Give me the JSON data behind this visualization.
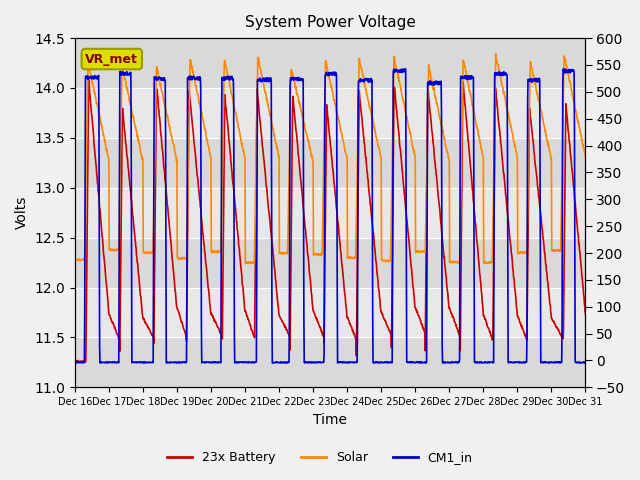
{
  "title": "System Power Voltage",
  "xlabel": "Time",
  "ylabel": "Volts",
  "ylim_left": [
    11.0,
    14.5
  ],
  "ylim_right": [
    -50,
    600
  ],
  "yticks_left": [
    11.0,
    11.5,
    12.0,
    12.5,
    13.0,
    13.5,
    14.0,
    14.5
  ],
  "yticks_right": [
    -50,
    0,
    50,
    100,
    150,
    200,
    250,
    300,
    350,
    400,
    450,
    500,
    550,
    600
  ],
  "xtick_labels": [
    "Dec 16",
    "Dec 17",
    "Dec 18",
    "Dec 19",
    "Dec 20",
    "Dec 21",
    "Dec 22",
    "Dec 23",
    "Dec 24",
    "Dec 25",
    "Dec 26",
    "Dec 27",
    "Dec 28",
    "Dec 29",
    "Dec 30",
    "Dec 31"
  ],
  "n_days": 15,
  "bg_color": "#f0f0f0",
  "plot_bg": "#e8e8e8",
  "line_color_battery": "#cc0000",
  "line_color_solar": "#ff8800",
  "line_color_cm1": "#0000cc",
  "line_width": 1.2,
  "legend_labels": [
    "23x Battery",
    "Solar",
    "CM1_in"
  ],
  "vr_met_label": "VR_met",
  "annotation_box_color": "#dddd00",
  "annotation_text_color": "#880000"
}
